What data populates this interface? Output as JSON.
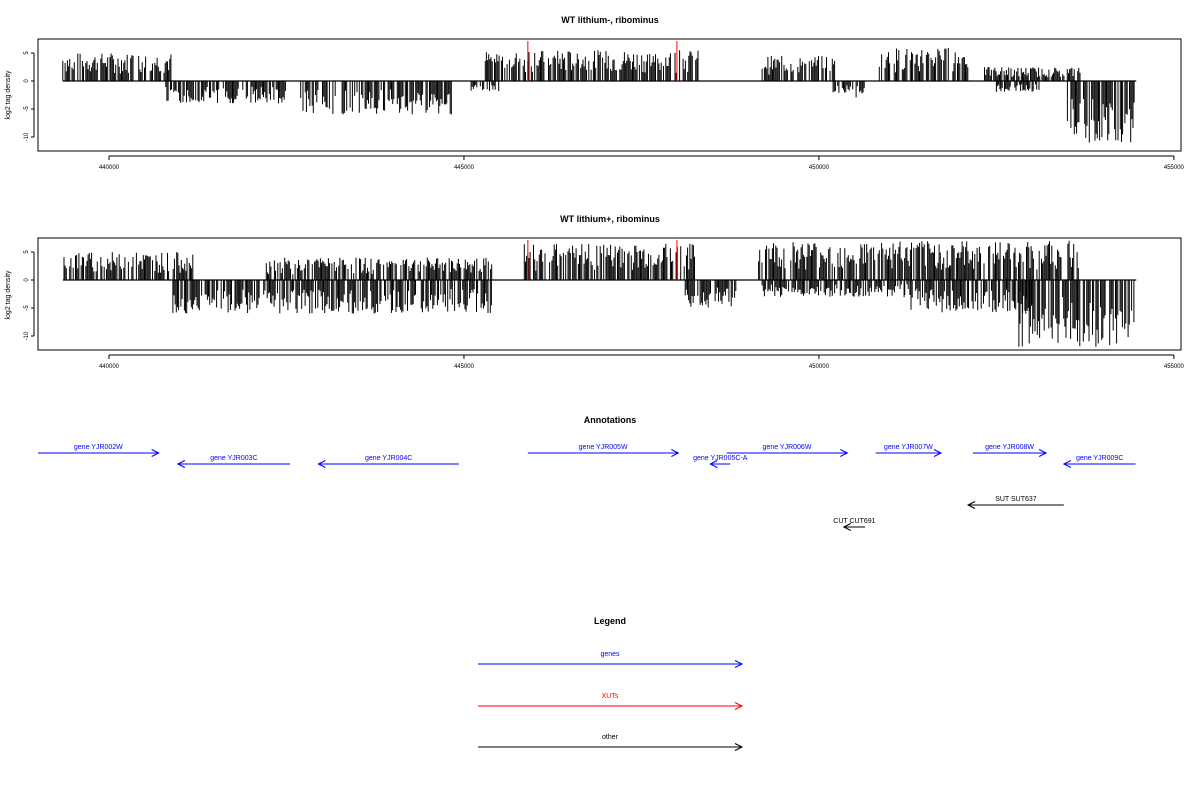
{
  "colors": {
    "genes": "#0000ff",
    "xuts": "#ff0000",
    "other": "#000000",
    "signal": "#000000"
  },
  "chart_data": [
    {
      "type": "bar",
      "title": "WT lithium-, ribominus",
      "ylabel": "log2 tag density",
      "xlim": [
        439000,
        455100
      ],
      "ylim": [
        -12.5,
        7.5
      ],
      "xticks": [
        440000,
        445000,
        450000,
        455000
      ],
      "yticks": [
        5,
        0,
        -5,
        -10
      ],
      "xut_markers": [
        445900,
        448000
      ],
      "plus_strand_regions": [
        {
          "start": 439350,
          "end": 440880,
          "max": 5
        },
        {
          "start": 445300,
          "end": 448300,
          "max": 5.5
        },
        {
          "start": 449200,
          "end": 450250,
          "max": 4.5
        },
        {
          "start": 450850,
          "end": 452100,
          "max": 6
        },
        {
          "start": 452300,
          "end": 453700,
          "max": 2.5
        }
      ],
      "minus_strand_regions": [
        {
          "start": 440800,
          "end": 442500,
          "min": -4
        },
        {
          "start": 442700,
          "end": 444850,
          "min": -6
        },
        {
          "start": 445100,
          "end": 445500,
          "min": -2
        },
        {
          "start": 450200,
          "end": 450650,
          "min": -3
        },
        {
          "start": 452500,
          "end": 453100,
          "min": -2
        },
        {
          "start": 453500,
          "end": 454450,
          "min": -11
        }
      ]
    },
    {
      "type": "bar",
      "title": "WT lithium+, ribominus",
      "ylabel": "log2 tag density",
      "xlim": [
        439000,
        455100
      ],
      "ylim": [
        -12.5,
        7.5
      ],
      "xticks": [
        440000,
        445000,
        450000,
        455000
      ],
      "yticks": [
        5,
        0,
        -5,
        -10
      ],
      "xut_markers": [
        445900,
        448000
      ],
      "plus_strand_regions": [
        {
          "start": 439350,
          "end": 441200,
          "max": 5
        },
        {
          "start": 442200,
          "end": 445400,
          "max": 4
        },
        {
          "start": 445850,
          "end": 448250,
          "max": 6.5
        },
        {
          "start": 449150,
          "end": 453700,
          "max": 7
        }
      ],
      "minus_strand_regions": [
        {
          "start": 440900,
          "end": 445400,
          "min": -6
        },
        {
          "start": 448100,
          "end": 448850,
          "min": -5
        },
        {
          "start": 449200,
          "end": 451300,
          "min": -3
        },
        {
          "start": 451200,
          "end": 453000,
          "min": -6
        },
        {
          "start": 452800,
          "end": 454450,
          "min": -12
        }
      ]
    }
  ],
  "annotations": {
    "title": "Annotations",
    "features": [
      {
        "label": "gene YJR002W",
        "start": 439000,
        "end": 440700,
        "dir": "+",
        "color": "#0000ff",
        "row": 0
      },
      {
        "label": "gene YJR003C",
        "start": 440970,
        "end": 442550,
        "dir": "-",
        "color": "#0000ff",
        "row": 1
      },
      {
        "label": "gene YJR004C",
        "start": 442950,
        "end": 444930,
        "dir": "-",
        "color": "#0000ff",
        "row": 1
      },
      {
        "label": "gene YJR005W",
        "start": 445900,
        "end": 448020,
        "dir": "+",
        "color": "#0000ff",
        "row": 0
      },
      {
        "label": "gene YJR005C-A",
        "start": 448470,
        "end": 448750,
        "dir": "-",
        "color": "#0000ff",
        "row": 1
      },
      {
        "label": "gene YJR006W",
        "start": 448700,
        "end": 450400,
        "dir": "+",
        "color": "#0000ff",
        "row": 0
      },
      {
        "label": "gene YJR007W",
        "start": 450800,
        "end": 451720,
        "dir": "+",
        "color": "#0000ff",
        "row": 0
      },
      {
        "label": "gene YJR008W",
        "start": 452170,
        "end": 453200,
        "dir": "+",
        "color": "#0000ff",
        "row": 0
      },
      {
        "label": "gene YJR009C",
        "start": 453450,
        "end": 454460,
        "dir": "-",
        "color": "#0000ff",
        "row": 1
      },
      {
        "label": "SUT SUT637",
        "start": 452100,
        "end": 453450,
        "dir": "-",
        "color": "#000000",
        "row": 2
      },
      {
        "label": "CUT CUT691",
        "start": 450350,
        "end": 450650,
        "dir": "-",
        "color": "#000000",
        "row": 3
      }
    ]
  },
  "legend": {
    "title": "Legend",
    "items": [
      {
        "label": "genes",
        "color": "#0000ff"
      },
      {
        "label": "XUTs",
        "color": "#ff0000"
      },
      {
        "label": "other",
        "color": "#000000"
      }
    ]
  }
}
